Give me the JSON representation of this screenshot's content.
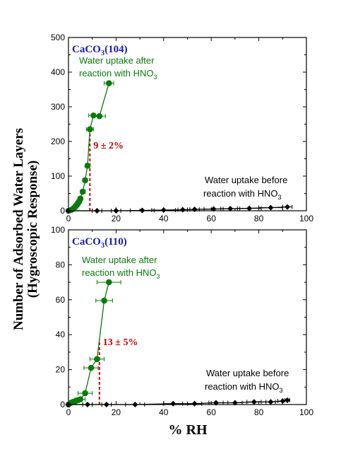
{
  "figure": {
    "ylabel_line1": "Number of Adsorbed Water Layers",
    "ylabel_line2": "(Hygroscopic Response)",
    "xlabel": "% RH"
  },
  "colors": {
    "after": "#0a7a0a",
    "before": "#000000",
    "threshold": "#c00000",
    "title": "#1a1aa8"
  },
  "chart_data": [
    {
      "type": "scatter",
      "title_main": "CaCO",
      "title_sub": "3",
      "title_rest": "(104)",
      "xlabel": "",
      "ylabel": "",
      "xlim": [
        0,
        100
      ],
      "ylim": [
        0,
        500
      ],
      "x_ticks": [
        0,
        20,
        40,
        60,
        80,
        100
      ],
      "y_ticks": [
        0,
        100,
        200,
        300,
        400,
        500
      ],
      "label_after_line1": "Water uptake after",
      "label_after_line2": "reaction with HNO",
      "label_after_sub": "3",
      "label_before_line1": "Water uptake before",
      "label_before_line2": "reaction with HNO",
      "label_before_sub": "3",
      "threshold_label": "9 ± 2%",
      "threshold_x": 9,
      "series": [
        {
          "key": "after",
          "x": [
            0,
            1,
            1.5,
            2,
            2.5,
            3,
            3.5,
            4,
            4.5,
            5,
            6,
            7,
            8,
            9,
            10.5,
            13,
            17
          ],
          "y": [
            0,
            2,
            4,
            6,
            9,
            13,
            17,
            22,
            27,
            35,
            55,
            88,
            130,
            235,
            275,
            273,
            368
          ],
          "xerr": [
            0,
            0.5,
            0.5,
            0.5,
            0.5,
            1,
            1,
            1,
            1,
            1,
            1,
            1,
            1,
            1.5,
            2,
            2.5,
            2
          ]
        },
        {
          "key": "before",
          "x": [
            0,
            12,
            20,
            31,
            40,
            48,
            53,
            61,
            68,
            76,
            85,
            92
          ],
          "y": [
            0,
            0,
            0,
            1,
            2,
            3,
            4,
            5,
            6,
            7,
            9,
            11
          ],
          "xerr": [
            0,
            2,
            2,
            5,
            5,
            2,
            2,
            4,
            4,
            5,
            5,
            2
          ]
        }
      ]
    },
    {
      "type": "scatter",
      "title_main": "CaCO",
      "title_sub": "3",
      "title_rest": "(110)",
      "xlabel": "% RH",
      "ylabel": "",
      "xlim": [
        0,
        100
      ],
      "ylim": [
        0,
        100
      ],
      "x_ticks": [
        0,
        20,
        40,
        60,
        80,
        100
      ],
      "y_ticks": [
        0,
        20,
        40,
        60,
        80,
        100
      ],
      "label_after_line1": "Water uptake after",
      "label_after_line2": "reaction with HNO",
      "label_after_sub": "3",
      "label_before_line1": "Water uptake before",
      "label_before_line2": "reaction with HNO",
      "label_before_sub": "3",
      "threshold_label": "13 ± 5%",
      "threshold_x": 13,
      "series": [
        {
          "key": "after",
          "x": [
            0,
            1,
            2,
            3,
            4,
            5,
            7,
            9.5,
            12,
            15,
            17
          ],
          "y": [
            0,
            1,
            1.5,
            2,
            2.5,
            3,
            6.5,
            21,
            26,
            59.5,
            70
          ],
          "xerr": [
            0,
            1,
            1,
            1.5,
            1.5,
            2,
            3,
            3,
            3,
            3.5,
            5
          ]
        },
        {
          "key": "before",
          "x": [
            0,
            8,
            16,
            28,
            44,
            53,
            62,
            70,
            78,
            85,
            90,
            92
          ],
          "y": [
            0,
            0,
            0,
            0,
            0.5,
            0.5,
            1,
            1,
            1.5,
            1.5,
            2,
            2.5
          ],
          "xerr": [
            0,
            2,
            2,
            4,
            4,
            3,
            3,
            3,
            3,
            2,
            2,
            1
          ]
        }
      ]
    }
  ]
}
